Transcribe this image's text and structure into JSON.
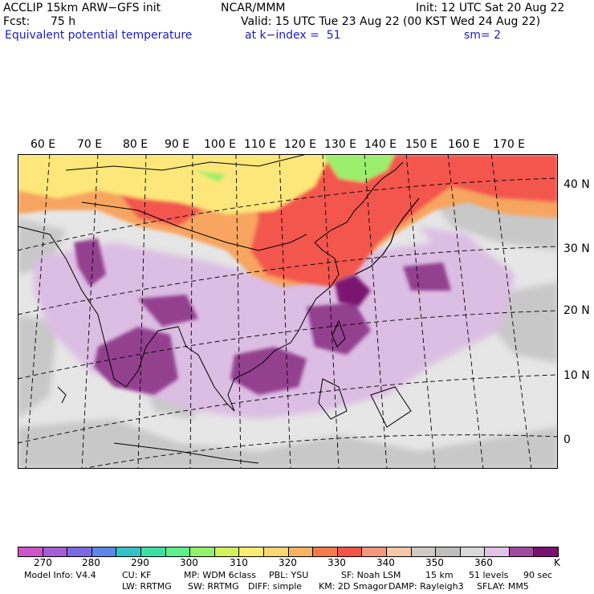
{
  "header": {
    "model": "ACCLIP 15km ARW−GFS init",
    "org": "NCAR/MMM",
    "init": "Init: 12 UTC Sat 20 Aug 22",
    "fcst_label": "Fcst:",
    "fcst_value": "75 h",
    "valid": "Valid: 15 UTC Tue 23 Aug 22 (00 KST Wed 24 Aug 22)",
    "field": "Equivalent potential temperature",
    "level": "at k−index =  51",
    "smoothing": "sm= 2"
  },
  "map": {
    "lon_labels": [
      "60 E",
      "70 E",
      "80 E",
      "90 E",
      "100 E",
      "110 E",
      "120 E",
      "130 E",
      "140 E",
      "150 E",
      "160 E",
      "170 E"
    ],
    "lat_labels": [
      "40 N",
      "30 N",
      "20 N",
      "10 N",
      "0"
    ],
    "colors": {
      "ocean_bg": "#e6e6e6",
      "gray_330": "#c8c8c8",
      "lilac": "#dcbde3",
      "purple": "#93408f",
      "dark_purple": "#7a1570",
      "orange": "#f7a561",
      "red": "#f3574d",
      "yellow": "#fde77a",
      "green": "#9bef6d"
    }
  },
  "colorbar": {
    "colors": [
      "#cc55c8",
      "#a45ed6",
      "#7c6be0",
      "#5d86e6",
      "#33c3c6",
      "#3de0a4",
      "#5df08c",
      "#95f06c",
      "#d2f25c",
      "#fbeb70",
      "#fbd671",
      "#f9b35f",
      "#f57a4c",
      "#f25448",
      "#f6967d",
      "#f5c8a8",
      "#cfcac5",
      "#bfbfbf",
      "#d9d9d9",
      "#e2c2e6",
      "#a24aa0",
      "#7a1170"
    ],
    "labels": [
      "270",
      "280",
      "290",
      "300",
      "310",
      "320",
      "330",
      "340",
      "350",
      "360",
      "K"
    ]
  },
  "footer": {
    "line1": [
      "Model Info: V4.4",
      "CU: KF",
      "MP: WDM 6class",
      "PBL: YSU",
      "SF: Noah LSM",
      "15 km",
      "51 levels",
      "90 sec"
    ],
    "line2": [
      "LW: RRTMG",
      "SW: RRTMG",
      "DIFF: simple",
      "KM: 2D Smagor",
      "DAMP: Rayleigh3",
      "SFLAY: MM5"
    ]
  }
}
